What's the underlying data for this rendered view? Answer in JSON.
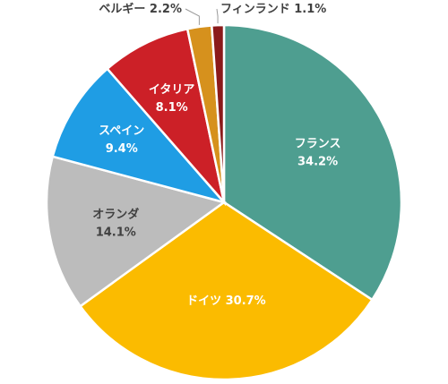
{
  "chart_data": {
    "type": "pie",
    "title": "",
    "slices": [
      {
        "label": "フランス",
        "value": 34.2,
        "display": "34.2%",
        "color": "#4e9e90",
        "text_color": "#ffffff"
      },
      {
        "label": "ドイツ",
        "value": 30.7,
        "display": "30.7%",
        "color": "#fbbb00",
        "text_color": "#ffffff"
      },
      {
        "label": "オランダ",
        "value": 14.1,
        "display": "14.1%",
        "color": "#bcbcbc",
        "text_color": "#404040"
      },
      {
        "label": "スペイン",
        "value": 9.4,
        "display": "9.4%",
        "color": "#1f9de4",
        "text_color": "#ffffff"
      },
      {
        "label": "イタリア",
        "value": 8.1,
        "display": "8.1%",
        "color": "#cc2027",
        "text_color": "#ffffff"
      },
      {
        "label": "ベルギー",
        "value": 2.2,
        "display": "2.2%",
        "color": "#d6911d",
        "text_color": "#404040"
      },
      {
        "label": "フィンランド",
        "value": 1.1,
        "display": "1.1%",
        "color": "#8b1a1a",
        "text_color": "#404040"
      }
    ],
    "start": "12 o'clock",
    "direction": "clockwise",
    "legend": "none"
  }
}
